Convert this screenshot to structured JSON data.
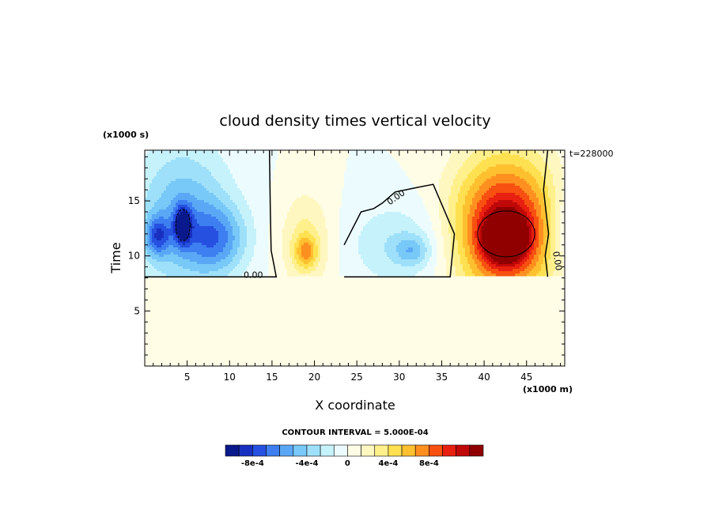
{
  "chart_data": {
    "type": "heatmap",
    "title": "cloud density times vertical velocity",
    "xlabel": "X coordinate",
    "ylabel": "Time",
    "x_unit": "(x1000 m)",
    "y_unit": "(x1000 s)",
    "xlim": [
      0,
      49.5
    ],
    "ylim": [
      0,
      19.6
    ],
    "xticks": [
      5,
      10,
      15,
      20,
      25,
      30,
      35,
      40,
      45
    ],
    "yticks": [
      5,
      10,
      15
    ],
    "time_label": "t=228000",
    "contour_interval_text": "CONTOUR INTERVAL = 5.000E-04",
    "zero_contour_label": "0.00",
    "colorbar": {
      "colors": [
        "#0a1a8c",
        "#1830c0",
        "#2550e0",
        "#3d7ef0",
        "#5aa8f5",
        "#78c8f8",
        "#9ee0fa",
        "#c6f2fc",
        "#ecfcfe",
        "#fffde6",
        "#fff7c0",
        "#fff08c",
        "#ffe050",
        "#ffc030",
        "#ff9020",
        "#f85010",
        "#e82010",
        "#c00808",
        "#900000"
      ],
      "labels": [
        "-8e-4",
        "-4e-4",
        "0",
        "4e-4",
        "8e-4"
      ],
      "label_index": [
        2,
        6,
        9,
        12,
        15
      ]
    },
    "blobs": [
      {
        "x": 4.5,
        "y": 13.5,
        "rx": 5.5,
        "ry": 6.5,
        "value": -0.0004
      },
      {
        "x": 8.5,
        "y": 11.5,
        "rx": 3.5,
        "ry": 3.0,
        "value": -0.0004
      },
      {
        "x": 4.5,
        "y": 12.8,
        "rx": 1.0,
        "ry": 1.7,
        "value": -0.00065
      },
      {
        "x": 1.5,
        "y": 11.8,
        "rx": 1.5,
        "ry": 1.8,
        "value": -0.00045
      },
      {
        "x": 19.0,
        "y": 11.2,
        "rx": 3.0,
        "ry": 4.5,
        "value": 0.00025
      },
      {
        "x": 19.0,
        "y": 10.4,
        "rx": 1.3,
        "ry": 1.4,
        "value": 0.00035
      },
      {
        "x": 30.0,
        "y": 11.0,
        "rx": 6.0,
        "ry": 3.8,
        "value": -0.0002
      },
      {
        "x": 31.5,
        "y": 10.5,
        "rx": 2.0,
        "ry": 1.3,
        "value": -0.00025
      },
      {
        "x": 42.5,
        "y": 12.5,
        "rx": 6.0,
        "ry": 6.5,
        "value": 0.0009
      },
      {
        "x": 42.5,
        "y": 11.6,
        "rx": 2.3,
        "ry": 1.9,
        "value": 0.0009
      },
      {
        "x": 49.5,
        "y": 12.5,
        "rx": 2.0,
        "ry": 4.0,
        "value": -0.0002
      }
    ],
    "cloud_base_y": 8.1
  }
}
